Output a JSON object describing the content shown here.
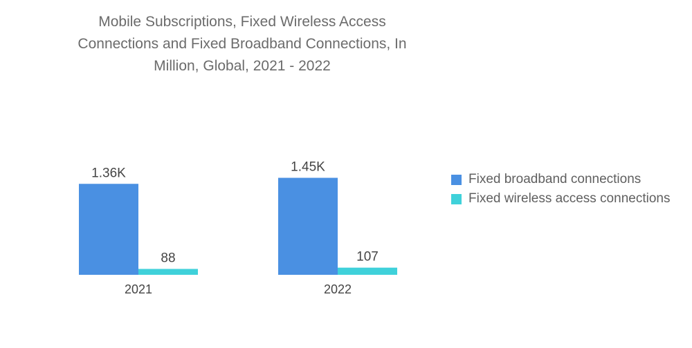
{
  "chart_data": {
    "type": "bar",
    "title_lines": [
      "Mobile Subscriptions, Fixed Wireless Access",
      "Connections and Fixed Broadband Connections, In",
      "Million, Global, 2021 - 2022"
    ],
    "categories": [
      "2021",
      "2022"
    ],
    "series": [
      {
        "name": "Fixed broadband connections",
        "color": "#4a90e2",
        "values": [
          1360,
          1450
        ],
        "labels": [
          "1.36K",
          "1.45K"
        ]
      },
      {
        "name": "Fixed wireless access connections",
        "color": "#3fd1da",
        "values": [
          88,
          107
        ],
        "labels": [
          "88",
          "107"
        ]
      }
    ],
    "xlabel": "",
    "ylabel": "",
    "ylim": [
      0,
      1600
    ],
    "grid": false,
    "legend_position": "right"
  }
}
